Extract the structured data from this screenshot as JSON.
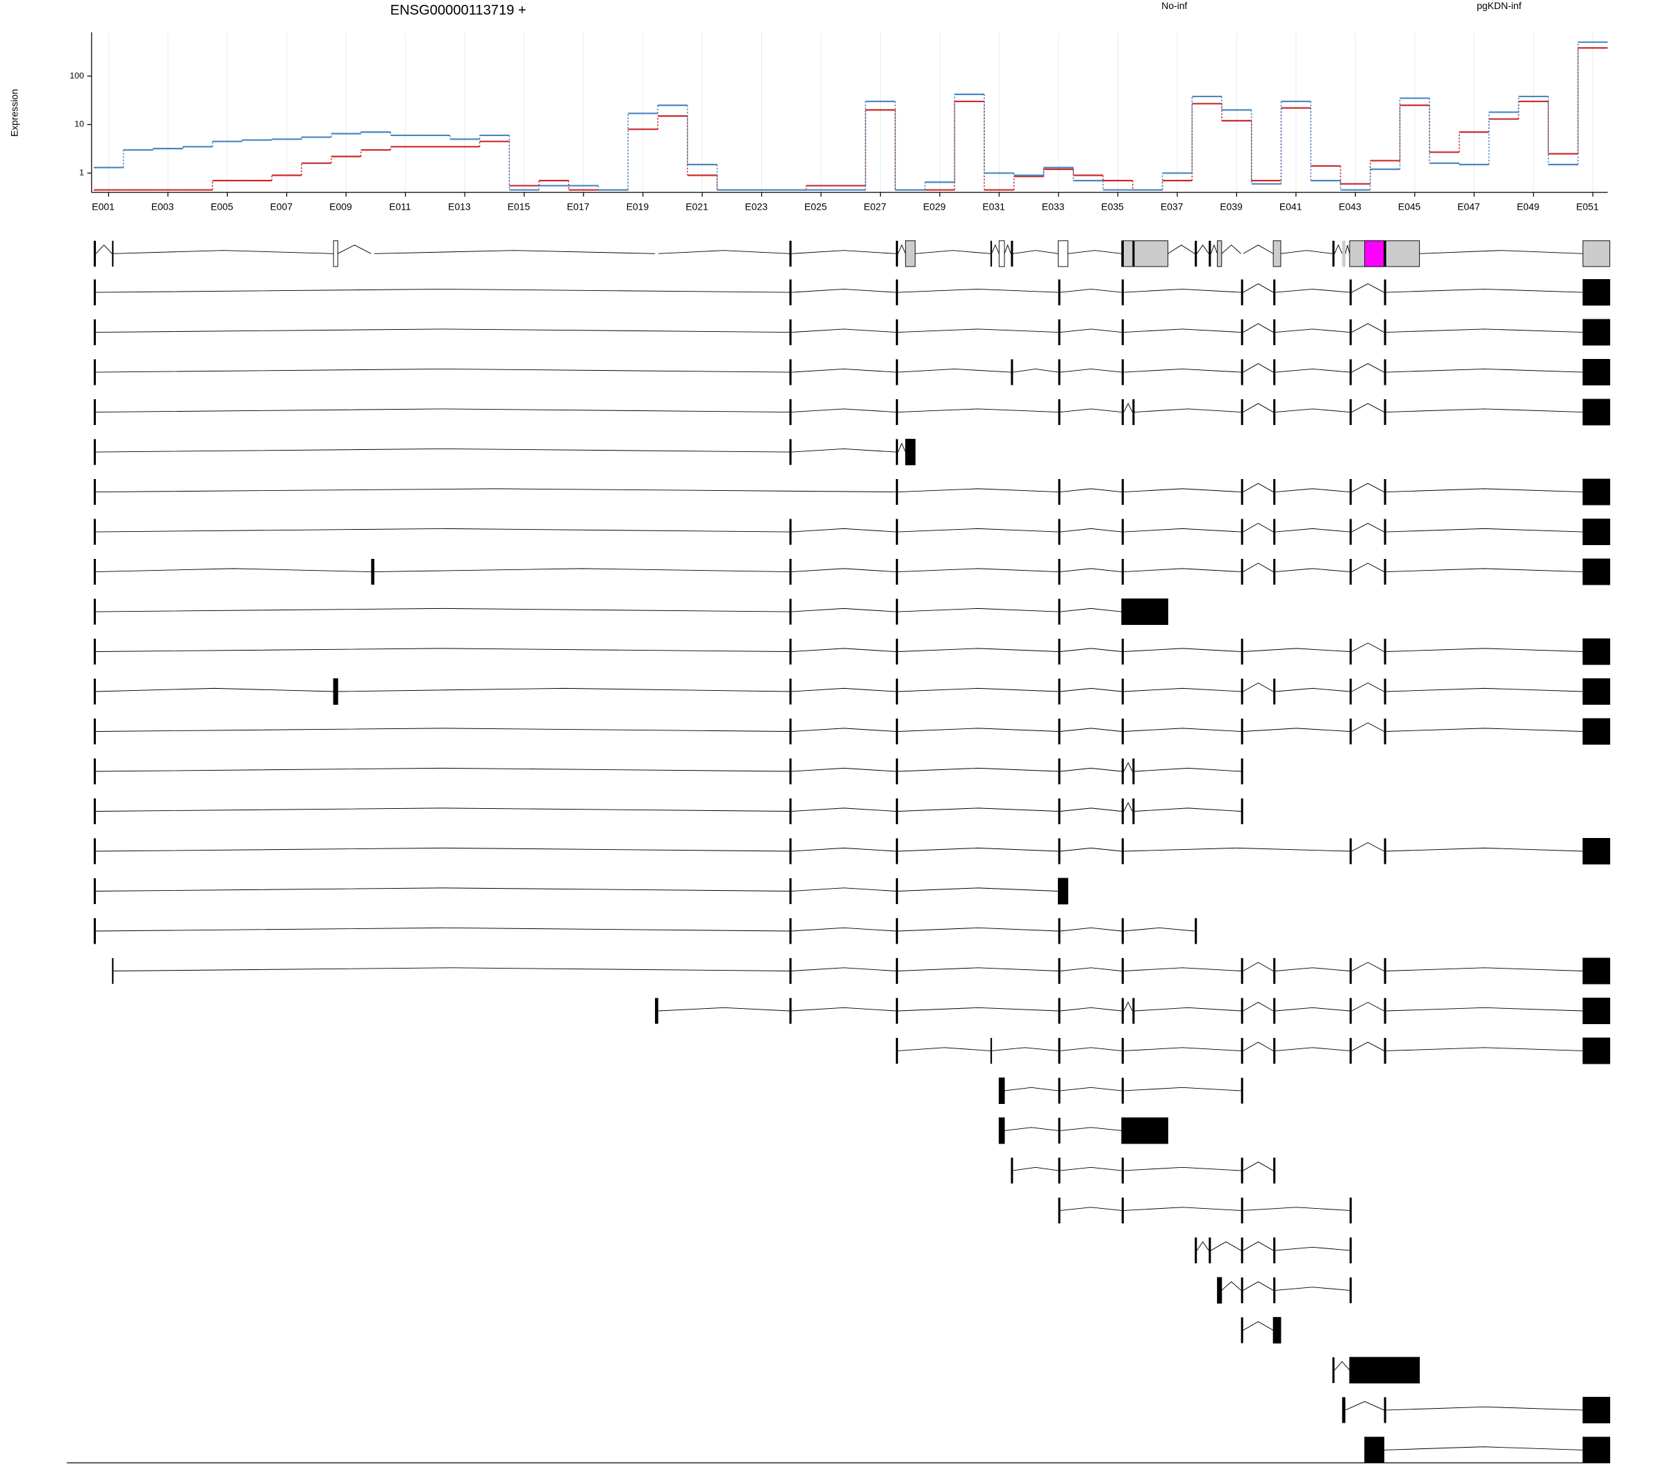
{
  "chart_data": {
    "type": "line",
    "title": "ENSG00000113719 +",
    "y_label": "Expression",
    "log_y": true,
    "grid": true,
    "legend_position": "top-right",
    "categories": [
      "E001",
      null,
      "E003",
      null,
      "E005",
      null,
      "E007",
      null,
      "E009",
      null,
      "E011",
      null,
      "E013",
      null,
      "E015",
      null,
      "E017",
      null,
      "E019",
      null,
      "E021",
      null,
      "E023",
      null,
      "E025",
      null,
      "E027",
      null,
      "E029",
      null,
      "E031",
      null,
      "E033",
      null,
      "E035",
      null,
      "E037",
      null,
      "E039",
      null,
      "E041",
      null,
      "E043",
      null,
      "E045",
      null,
      "E047",
      null,
      "E049",
      null,
      "E051"
    ],
    "ylim": [
      0.4,
      800
    ],
    "yticks": [
      1,
      10,
      100
    ],
    "series": [
      {
        "name": "No-inf",
        "color": "#cc2a2a",
        "values": [
          0.45,
          0.45,
          0.45,
          0.45,
          0.7,
          0.7,
          0.9,
          1.6,
          2.2,
          3,
          3.5,
          3.5,
          3.5,
          4.5,
          0.55,
          0.7,
          0.45,
          0.45,
          8,
          15,
          0.9,
          0.45,
          0.45,
          0.45,
          0.55,
          0.55,
          20,
          0.45,
          0.45,
          30,
          0.45,
          0.85,
          1.2,
          0.9,
          0.7,
          0.45,
          0.7,
          27,
          12,
          0.7,
          22,
          1.4,
          0.6,
          1.8,
          25,
          2.7,
          7,
          13,
          30,
          2.5,
          380
        ]
      },
      {
        "name": "pgKDN-inf",
        "color": "#4a86c0",
        "values": [
          1.3,
          3,
          3.2,
          3.5,
          4.5,
          4.8,
          5,
          5.5,
          6.5,
          7,
          6,
          6,
          5,
          6,
          0.45,
          0.55,
          0.55,
          0.45,
          17,
          25,
          1.5,
          0.45,
          0.45,
          0.45,
          0.45,
          0.45,
          30,
          0.45,
          0.65,
          42,
          1,
          0.9,
          1.3,
          0.7,
          0.45,
          0.45,
          1,
          38,
          20,
          0.6,
          30,
          0.7,
          0.45,
          1.2,
          35,
          1.6,
          1.5,
          18,
          38,
          1.5,
          500
        ]
      }
    ]
  },
  "gene_structure": {
    "xlim": [
      172834251,
      172952792
    ],
    "xticks": [
      172834251,
      172847422,
      172860593,
      172873765,
      172886936,
      172900107,
      172913278,
      172926450,
      172939621,
      172952792
    ],
    "exons": [
      [
        172834251,
        172834420
      ],
      [
        172835680,
        172835764
      ],
      [
        172852999,
        172853335
      ],
      [
        172855941,
        172856193
      ],
      [
        172878136,
        172878388
      ],
      [
        172888644,
        172888812
      ],
      [
        172896967,
        172897135
      ],
      [
        172897724,
        172898480
      ],
      [
        172904365,
        172904449
      ],
      [
        172905038,
        172905458
      ],
      [
        172905963,
        172906131
      ],
      [
        172909662,
        172909830
      ],
      [
        172914622,
        172914790
      ],
      [
        172915465,
        172915633
      ],
      [
        172914622,
        172918237
      ],
      [
        172920339,
        172920507
      ],
      [
        172921433,
        172921601
      ],
      [
        172922104,
        172922440
      ],
      [
        172923954,
        172924122
      ],
      [
        172926476,
        172926644
      ],
      [
        172926476,
        172927064
      ],
      [
        172931100,
        172931268
      ],
      [
        172931862,
        172932114
      ],
      [
        172932445,
        172932613
      ],
      [
        172932445,
        172937909
      ],
      [
        172933622,
        172935135
      ],
      [
        172935135,
        172935303
      ],
      [
        172950688,
        172952792
      ],
      [
        172909662,
        172910418
      ]
    ],
    "gene_model": [
      0,
      1,
      2,
      3,
      4,
      5,
      6,
      7,
      8,
      9,
      10,
      28,
      14,
      12,
      13,
      15,
      16,
      17,
      18,
      20,
      21,
      22,
      24,
      25,
      26,
      27
    ],
    "gene_model_colors": [
      "#000000",
      "#000000",
      "#ffffff",
      "#ffffff",
      "#ffffff",
      "#000000",
      "#000000",
      "#cccccc",
      "#000000",
      "#ffffff",
      "#000000",
      "#ffffff",
      "#cccccc",
      "#000000",
      "#000000",
      "#000000",
      "#000000",
      "#cccccc",
      "#ffffff",
      "#cccccc",
      "#000000",
      "#cccccc",
      "#cccccc",
      "#ff00ff",
      "#000000",
      "#cccccc"
    ],
    "transcripts": [
      [
        0,
        5,
        6,
        11,
        12,
        18,
        19,
        23,
        26,
        27
      ],
      [
        0,
        5,
        6,
        11,
        12,
        18,
        19,
        23,
        26,
        27
      ],
      [
        0,
        5,
        6,
        10,
        11,
        12,
        18,
        19,
        23,
        26,
        27
      ],
      [
        0,
        5,
        6,
        11,
        12,
        13,
        18,
        19,
        23,
        26,
        27
      ],
      [
        0,
        5,
        6,
        7
      ],
      [
        0,
        6,
        11,
        12,
        18,
        19,
        23,
        26,
        27
      ],
      [
        0,
        5,
        6,
        11,
        12,
        18,
        19,
        23,
        26,
        27
      ],
      [
        0,
        3,
        5,
        6,
        11,
        12,
        18,
        19,
        23,
        26,
        27
      ],
      [
        0,
        5,
        6,
        11,
        14
      ],
      [
        0,
        5,
        6,
        11,
        12,
        18,
        23,
        26,
        27
      ],
      [
        0,
        2,
        5,
        6,
        11,
        12,
        18,
        19,
        23,
        26,
        27
      ],
      [
        0,
        5,
        6,
        11,
        12,
        18,
        23,
        26,
        27
      ],
      [
        0,
        5,
        6,
        11,
        12,
        13,
        18
      ],
      [
        0,
        5,
        6,
        11,
        12,
        13,
        18
      ],
      [
        0,
        5,
        6,
        11,
        12,
        23,
        26,
        27
      ],
      [
        0,
        5,
        6,
        28
      ],
      [
        0,
        5,
        6,
        11,
        12,
        15
      ],
      [
        1,
        5,
        6,
        11,
        12,
        18,
        19,
        23,
        26,
        27
      ],
      [
        4,
        5,
        6,
        11,
        12,
        13,
        18,
        19,
        23,
        26,
        27
      ],
      [
        6,
        8,
        11,
        12,
        18,
        19,
        23,
        26,
        27
      ],
      [
        9,
        11,
        12,
        18
      ],
      [
        9,
        11,
        14
      ],
      [
        10,
        11,
        12,
        18,
        19
      ],
      [
        11,
        12,
        18,
        23
      ],
      [
        15,
        16,
        18,
        19,
        23
      ],
      [
        17,
        18,
        19,
        23
      ],
      [
        18,
        20
      ],
      [
        21,
        24
      ],
      [
        22,
        26,
        27
      ],
      [
        25,
        27
      ]
    ]
  }
}
